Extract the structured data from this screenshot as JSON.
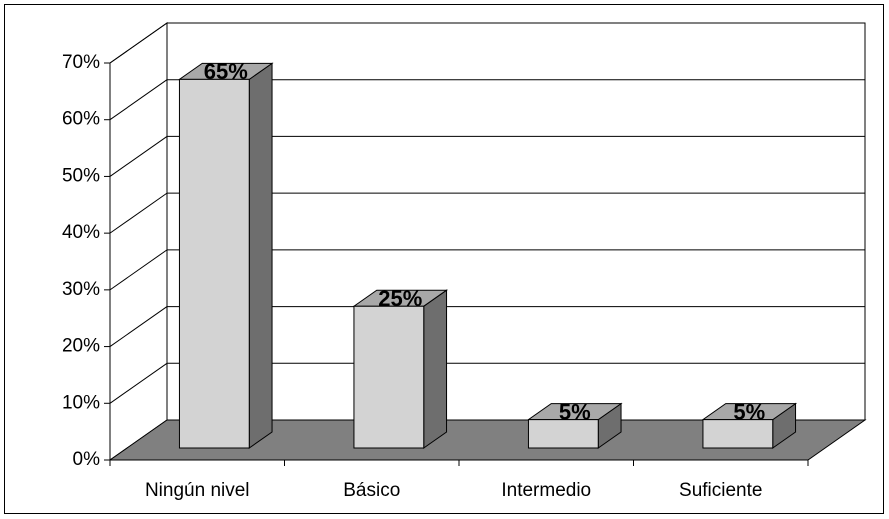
{
  "chart_data": {
    "type": "bar3d",
    "categories": [
      "Ningún nivel",
      "Básico",
      "Intermedio",
      "Suficiente"
    ],
    "values": [
      65,
      25,
      5,
      5
    ],
    "value_labels": [
      "65%",
      "25%",
      "5%",
      "5%"
    ],
    "colors": {
      "front": "#d3d3d3",
      "side": "#6e6e6e",
      "top": "#a8a8a8",
      "floor": "#808080"
    },
    "ylim": [
      0,
      70
    ],
    "yticks": [
      {
        "value": 0,
        "label": "0%"
      },
      {
        "value": 10,
        "label": "10%"
      },
      {
        "value": 20,
        "label": "20%"
      },
      {
        "value": 30,
        "label": "30%"
      },
      {
        "value": 40,
        "label": "40%"
      },
      {
        "value": 50,
        "label": "50%"
      },
      {
        "value": 60,
        "label": "60%"
      },
      {
        "value": 70,
        "label": "70%"
      }
    ],
    "grid": true
  }
}
